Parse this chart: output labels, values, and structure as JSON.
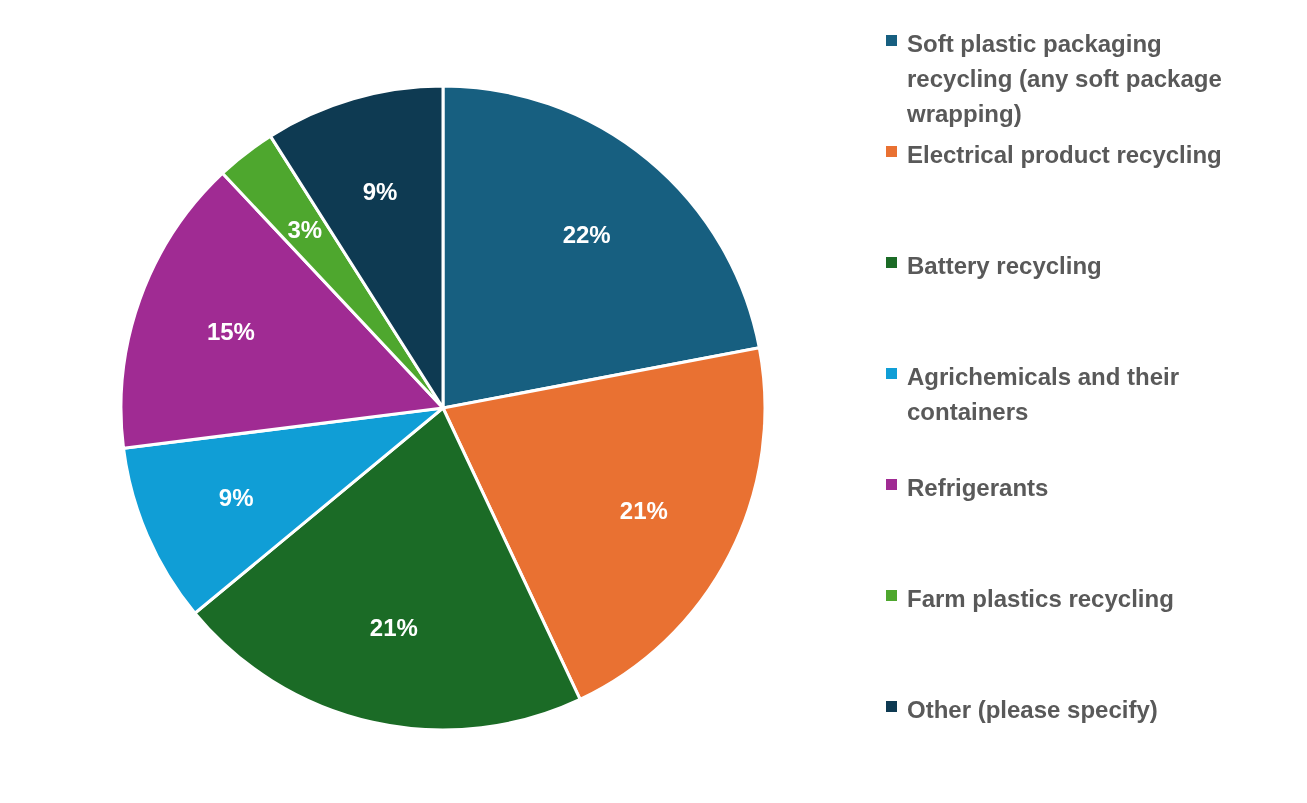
{
  "chart_data": {
    "type": "pie",
    "categories": [
      "Soft plastic packaging recycling (any soft package wrapping)",
      "Electrical product recycling",
      "Battery recycling",
      "Agrichemicals and their containers",
      "Refrigerants",
      "Farm plastics recycling",
      "Other (please specify)"
    ],
    "values": [
      22,
      21,
      21,
      9,
      15,
      3,
      9
    ],
    "value_labels": [
      "22%",
      "21%",
      "21%",
      "9%",
      "15%",
      "3%",
      "9%"
    ],
    "colors": [
      "#175f80",
      "#e97132",
      "#1b6b26",
      "#109ed6",
      "#a02b93",
      "#4ea72e",
      "#0e3a52"
    ],
    "legend": "right"
  }
}
